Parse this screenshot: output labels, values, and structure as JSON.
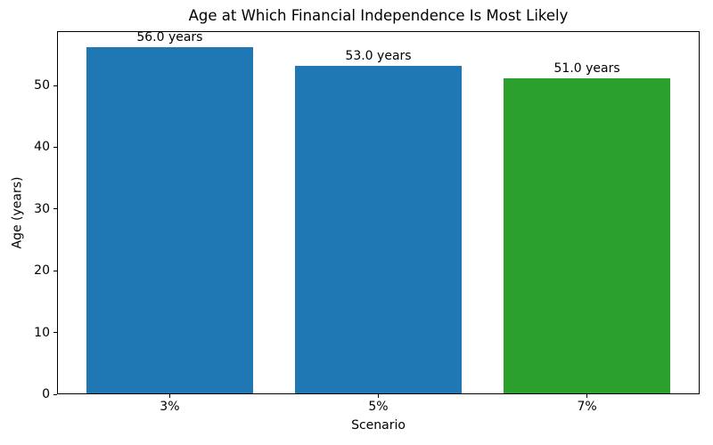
{
  "chart_data": {
    "type": "bar",
    "title": "Age at Which Financial Independence Is Most Likely",
    "xlabel": "Scenario",
    "ylabel": "Age (years)",
    "categories": [
      "3%",
      "5%",
      "7%"
    ],
    "values": [
      56.0,
      53.0,
      51.0
    ],
    "bar_labels": [
      "56.0 years",
      "53.0 years",
      "51.0 years"
    ],
    "bar_colors": [
      "#1f77b4",
      "#1f77b4",
      "#2ca02c"
    ],
    "ylim": [
      0,
      58.8
    ],
    "yticks": [
      0,
      10,
      20,
      30,
      40,
      50
    ],
    "bar_width_fraction": 0.8,
    "grid": false,
    "legend": false,
    "background_color": "#ffffff",
    "text_color": "#000000",
    "spine_color": "#000000"
  }
}
